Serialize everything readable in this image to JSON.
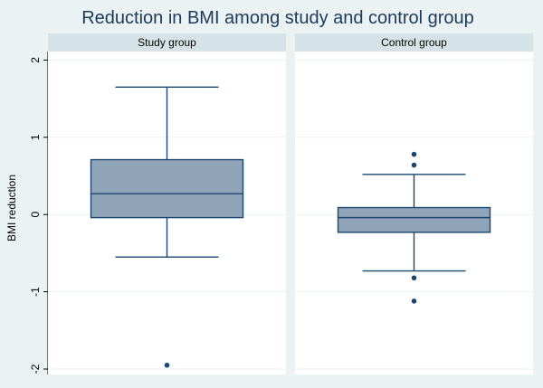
{
  "chart_data": {
    "type": "box",
    "title": "Reduction in BMI among study and control group",
    "ylabel": "BMI reduction",
    "xlabel": "",
    "ylim": [
      -2.07,
      2.11
    ],
    "yticks": [
      2,
      1,
      0,
      -1,
      -2
    ],
    "ytick_labels": [
      "2",
      "1",
      "0",
      "-1",
      "-2"
    ],
    "grid": true,
    "legend": "none",
    "panels": [
      {
        "label": "Study group",
        "box": {
          "whisker_low": -0.55,
          "q1": -0.04,
          "median": 0.27,
          "q3": 0.71,
          "whisker_high": 1.65
        },
        "outliers": [
          -1.95
        ]
      },
      {
        "label": "Control group",
        "box": {
          "whisker_low": -0.73,
          "q1": -0.23,
          "median": -0.04,
          "q3": 0.09,
          "whisker_high": 0.52
        },
        "outliers": [
          0.78,
          0.64,
          -0.82,
          -1.12
        ]
      }
    ]
  },
  "colors": {
    "background": "#eaf2f3",
    "panel": "#ffffff",
    "strip": "#d5e3e8",
    "grid": "#eaf2f3",
    "box_fill": "#8fa4b8",
    "line": "#1a476f",
    "title": "#1e3a5a"
  }
}
